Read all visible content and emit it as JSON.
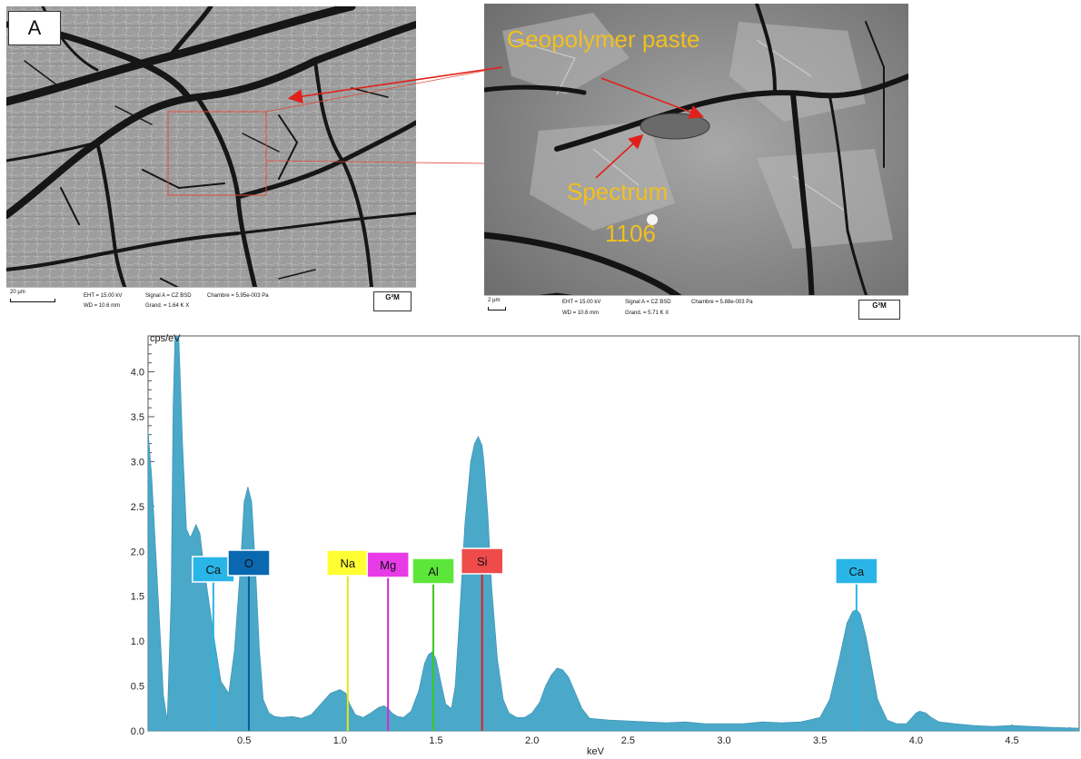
{
  "panel_label": "A",
  "left_image": {
    "scale_bar": "20 µm",
    "eht": "EHT = 15.00 kV",
    "wd": "WD = 10.6 mm",
    "signal": "Signal A = CZ BSD",
    "grand": "Grand. =  1.64 K X",
    "chamber": "Chambre = 5.95e-003 Pa",
    "logo": "G²M"
  },
  "right_image": {
    "scale_bar": "2 µm",
    "eht": "EHT = 15.00 kV",
    "wd": "WD = 10.6 mm",
    "signal": "Signal A = CZ BSD",
    "grand": "Grand. =  5.71 K X",
    "chamber": "Chambre = 5.88e-003 Pa",
    "logo": "G²M"
  },
  "annotations": {
    "geopolymer": "Geopolymer paste",
    "spectrum_line1": "Spectrum",
    "spectrum_line2": "1106"
  },
  "colors": {
    "spectrum_fill": "#4aa8c8",
    "annotation_text": "#f1bf20",
    "arrow": "#e0201a"
  },
  "chart_data": {
    "type": "area",
    "title": "",
    "xlabel": "keV",
    "ylabel": "cps/eV",
    "xlim": [
      0,
      4.85
    ],
    "ylim": [
      0,
      4.4
    ],
    "x_ticks": [
      "0.5",
      "1.0",
      "1.5",
      "2.0",
      "2.5",
      "3.0",
      "3.5",
      "4.0",
      "4.5"
    ],
    "y_ticks": [
      "0.0",
      "0.5",
      "1.0",
      "1.5",
      "2.0",
      "2.5",
      "3.0",
      "3.5",
      "4.0"
    ],
    "series": [
      {
        "x": [
          0,
          0.02,
          0.05,
          0.08,
          0.1,
          0.12,
          0.13,
          0.14,
          0.16,
          0.18,
          0.2,
          0.22,
          0.25,
          0.27,
          0.29,
          0.32,
          0.35,
          0.38,
          0.42,
          0.45,
          0.48,
          0.5,
          0.52,
          0.54,
          0.56,
          0.58,
          0.6,
          0.63,
          0.66,
          0.7,
          0.75,
          0.8,
          0.85,
          0.9,
          0.95,
          1.0,
          1.03,
          1.05,
          1.08,
          1.12,
          1.16,
          1.2,
          1.23,
          1.25,
          1.27,
          1.3,
          1.33,
          1.37,
          1.41,
          1.44,
          1.46,
          1.48,
          1.5,
          1.52,
          1.55,
          1.58,
          1.6,
          1.62,
          1.65,
          1.68,
          1.7,
          1.72,
          1.74,
          1.75,
          1.77,
          1.79,
          1.82,
          1.85,
          1.88,
          1.92,
          1.96,
          2.0,
          2.04,
          2.07,
          2.1,
          2.13,
          2.16,
          2.19,
          2.22,
          2.26,
          2.3,
          2.4,
          2.5,
          2.6,
          2.7,
          2.8,
          2.9,
          3.0,
          3.1,
          3.2,
          3.3,
          3.4,
          3.5,
          3.55,
          3.6,
          3.64,
          3.67,
          3.69,
          3.71,
          3.74,
          3.77,
          3.8,
          3.85,
          3.9,
          3.95,
          3.98,
          4.0,
          4.02,
          4.05,
          4.08,
          4.12,
          4.2,
          4.3,
          4.4,
          4.5,
          4.6,
          4.7,
          4.85
        ],
        "y": [
          3.35,
          2.8,
          1.6,
          0.4,
          0.12,
          1.5,
          3.6,
          4.5,
          4.5,
          3.2,
          2.25,
          2.15,
          2.3,
          2.2,
          1.85,
          1.4,
          0.95,
          0.55,
          0.42,
          0.9,
          1.8,
          2.55,
          2.72,
          2.55,
          1.8,
          0.9,
          0.35,
          0.2,
          0.16,
          0.15,
          0.16,
          0.14,
          0.18,
          0.3,
          0.42,
          0.46,
          0.42,
          0.3,
          0.18,
          0.15,
          0.2,
          0.26,
          0.28,
          0.25,
          0.2,
          0.16,
          0.15,
          0.22,
          0.45,
          0.75,
          0.85,
          0.88,
          0.8,
          0.6,
          0.3,
          0.25,
          0.5,
          1.2,
          2.3,
          3.0,
          3.2,
          3.28,
          3.18,
          3.0,
          2.4,
          1.6,
          0.8,
          0.35,
          0.2,
          0.15,
          0.15,
          0.2,
          0.32,
          0.5,
          0.62,
          0.7,
          0.68,
          0.6,
          0.45,
          0.25,
          0.14,
          0.12,
          0.11,
          0.1,
          0.09,
          0.1,
          0.08,
          0.08,
          0.08,
          0.1,
          0.09,
          0.1,
          0.15,
          0.35,
          0.8,
          1.2,
          1.33,
          1.35,
          1.3,
          1.05,
          0.7,
          0.35,
          0.12,
          0.08,
          0.08,
          0.15,
          0.2,
          0.22,
          0.2,
          0.15,
          0.1,
          0.08,
          0.06,
          0.05,
          0.06,
          0.05,
          0.04,
          0.03
        ]
      }
    ],
    "element_markers": [
      {
        "label": "Ca",
        "kev": 0.34,
        "box_color": "#29b5e8",
        "line_color": "#29b5e8"
      },
      {
        "label": "O",
        "kev": 0.525,
        "box_color": "#0a68b0",
        "line_color": "#0a5a9c"
      },
      {
        "label": "Na",
        "kev": 1.04,
        "box_color": "#ffff33",
        "line_color": "#e6e61a"
      },
      {
        "label": "Mg",
        "kev": 1.25,
        "box_color": "#e83be8",
        "line_color": "#d02ad0"
      },
      {
        "label": "Al",
        "kev": 1.486,
        "box_color": "#5ce63a",
        "line_color": "#3cc81e"
      },
      {
        "label": "Si",
        "kev": 1.74,
        "box_color": "#ef4b4b",
        "line_color": "#e02020"
      },
      {
        "label": "Ca",
        "kev": 3.69,
        "box_color": "#29b5e8",
        "line_color": "#29b5e8"
      }
    ]
  }
}
